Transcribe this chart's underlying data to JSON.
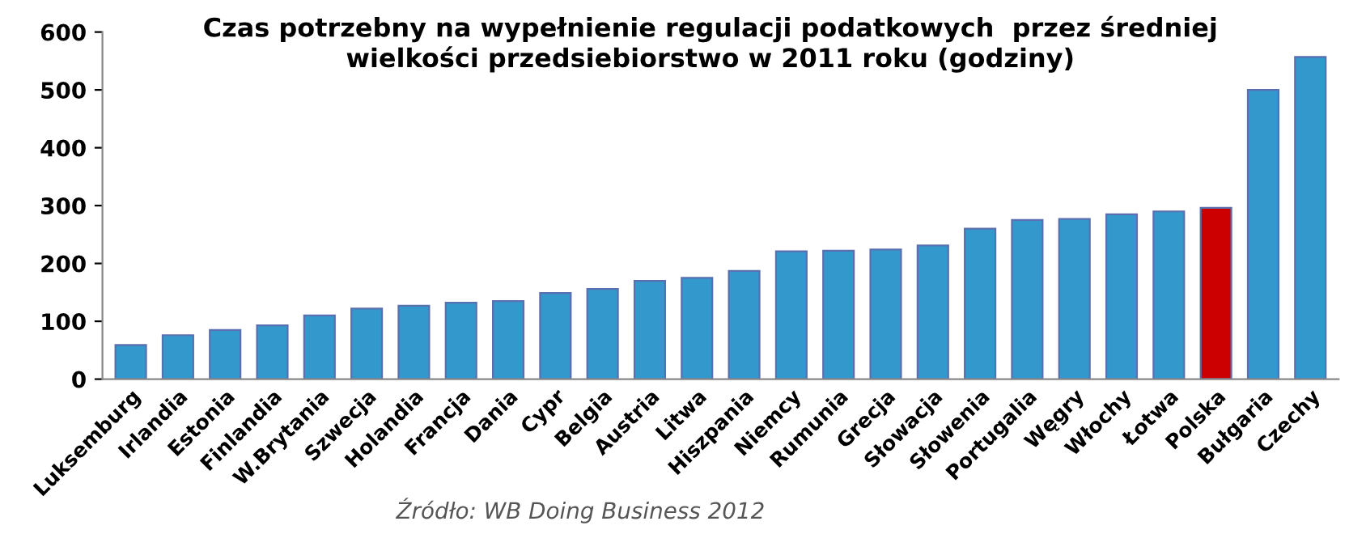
{
  "chart_data": {
    "type": "bar",
    "title": "Czas potrzebny na wypełnienie regulacji podatkowych  przez średniej\nwielkości przedsiebiorstwo w 2011 roku (godziny)",
    "categories": [
      "Luksemburg",
      "Irlandia",
      "Estonia",
      "Finlandia",
      "W.Brytania",
      "Szwecja",
      "Holandia",
      "Francja",
      "Dania",
      "Cypr",
      "Belgia",
      "Austria",
      "Litwa",
      "Hiszpania",
      "Niemcy",
      "Rumunia",
      "Grecja",
      "Słowacja",
      "Słowenia",
      "Portugalia",
      "Węgry",
      "Włochy",
      "Łotwa",
      "Polska",
      "Bułgaria",
      "Czechy"
    ],
    "values": [
      59,
      76,
      85,
      93,
      110,
      122,
      127,
      132,
      135,
      149,
      156,
      170,
      175,
      187,
      221,
      222,
      224,
      231,
      260,
      275,
      277,
      285,
      290,
      296,
      500,
      557
    ],
    "colors": [
      "#3399cc",
      "#3399cc",
      "#3399cc",
      "#3399cc",
      "#3399cc",
      "#3399cc",
      "#3399cc",
      "#3399cc",
      "#3399cc",
      "#3399cc",
      "#3399cc",
      "#3399cc",
      "#3399cc",
      "#3399cc",
      "#3399cc",
      "#3399cc",
      "#3399cc",
      "#3399cc",
      "#3399cc",
      "#3399cc",
      "#3399cc",
      "#3399cc",
      "#3399cc",
      "#cc0000",
      "#3399cc",
      "#3399cc"
    ],
    "ylim": [
      0,
      600
    ],
    "yticks": [
      0,
      100,
      200,
      300,
      400,
      500,
      600
    ],
    "annotations": [
      "Źródło: WB Doing Business 2012"
    ]
  }
}
